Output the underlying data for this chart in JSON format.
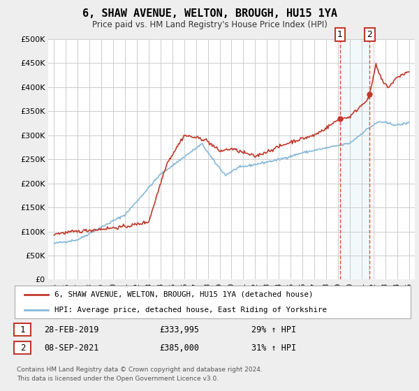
{
  "title": "6, SHAW AVENUE, WELTON, BROUGH, HU15 1YA",
  "subtitle": "Price paid vs. HM Land Registry's House Price Index (HPI)",
  "legend_line1": "6, SHAW AVENUE, WELTON, BROUGH, HU15 1YA (detached house)",
  "legend_line2": "HPI: Average price, detached house, East Riding of Yorkshire",
  "table_row1": [
    "1",
    "28-FEB-2019",
    "£333,995",
    "29% ↑ HPI"
  ],
  "table_row2": [
    "2",
    "08-SEP-2021",
    "£385,000",
    "31% ↑ HPI"
  ],
  "footnote1": "Contains HM Land Registry data © Crown copyright and database right 2024.",
  "footnote2": "This data is licensed under the Open Government Licence v3.0.",
  "vline1_x": 2019.16,
  "vline2_x": 2021.69,
  "marker1_red_x": 2019.16,
  "marker1_red_y": 333995,
  "marker2_red_x": 2021.69,
  "marker2_red_y": 385000,
  "ylim": [
    0,
    500000
  ],
  "xlim": [
    1994.5,
    2025.5
  ],
  "yticks": [
    0,
    50000,
    100000,
    150000,
    200000,
    250000,
    300000,
    350000,
    400000,
    450000,
    500000
  ],
  "xticks": [
    1995,
    1996,
    1997,
    1998,
    1999,
    2000,
    2001,
    2002,
    2003,
    2004,
    2005,
    2006,
    2007,
    2008,
    2009,
    2010,
    2011,
    2012,
    2013,
    2014,
    2015,
    2016,
    2017,
    2018,
    2019,
    2020,
    2021,
    2022,
    2023,
    2024,
    2025
  ],
  "red_color": "#c0392b",
  "blue_color": "#85b8d8",
  "vline_color": "#e74c3c",
  "background_color": "#eeeeee",
  "plot_bg_color": "#ffffff",
  "grid_color": "#cccccc",
  "table_border_color": "#c0392b"
}
